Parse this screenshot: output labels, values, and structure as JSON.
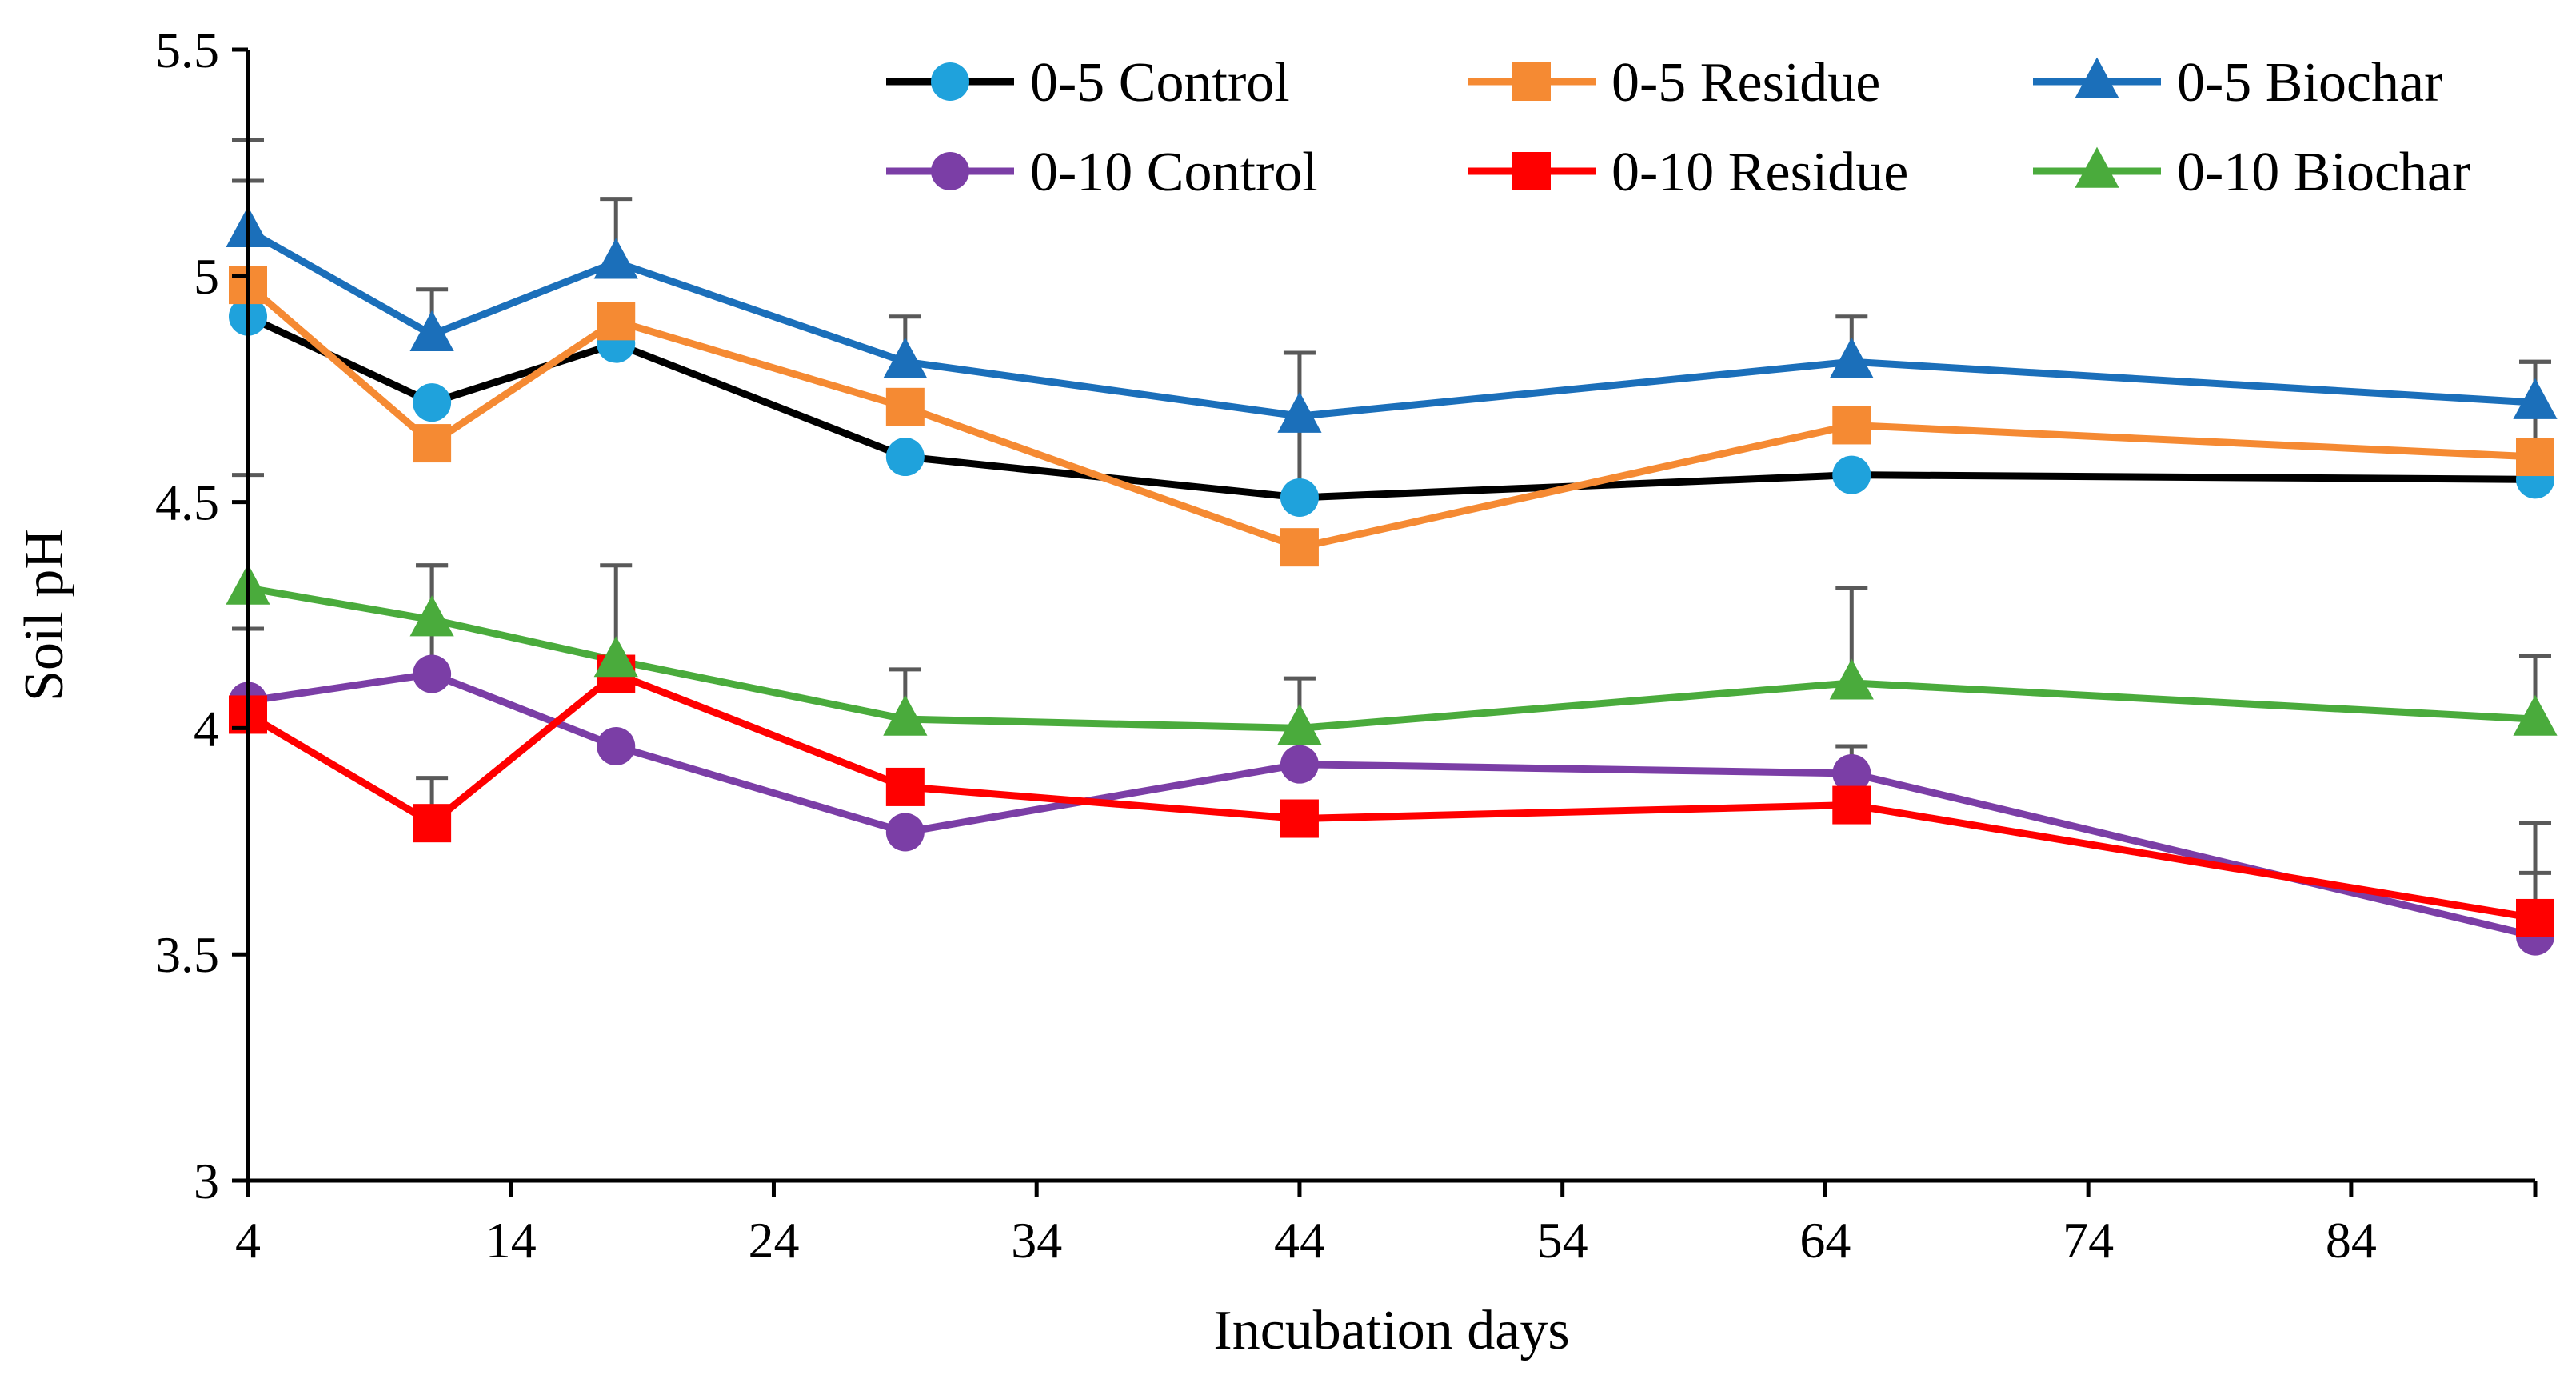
{
  "chart_data": {
    "type": "line",
    "title": "",
    "xlabel": "Incubation days",
    "ylabel": "Soil pH",
    "xlim": [
      4,
      91
    ],
    "ylim": [
      3,
      5.5
    ],
    "x_ticks": [
      4,
      14,
      24,
      34,
      44,
      54,
      64,
      74,
      84
    ],
    "x_tick_labels": [
      "4",
      "14",
      "24",
      "34",
      "44",
      "54",
      "64",
      "74",
      "84"
    ],
    "y_ticks": [
      3,
      3.5,
      4,
      4.5,
      5,
      5.5
    ],
    "y_tick_labels": [
      "3",
      "3.5",
      "4",
      "4.5",
      "5",
      "5.5"
    ],
    "grid": false,
    "legend_position": "top-right",
    "x": [
      4,
      11,
      18,
      29,
      44,
      65,
      91
    ],
    "series": [
      {
        "name": "0-5 Control",
        "line_color": "#000000",
        "marker_color": "#1fa2dc",
        "marker": "circle",
        "values": [
          4.91,
          4.72,
          4.85,
          4.6,
          4.51,
          4.56,
          4.55
        ],
        "errors": [
          0.0,
          0.0,
          0.0,
          0.0,
          0.15,
          0.0,
          0.0
        ]
      },
      {
        "name": "0-5 Residue",
        "line_color": "#f58a33",
        "marker_color": "#f58a33",
        "marker": "square",
        "values": [
          4.98,
          4.63,
          4.9,
          4.71,
          4.4,
          4.67,
          4.6
        ],
        "errors": [
          0.23,
          0.0,
          0.0,
          0.0,
          0.0,
          0.0,
          0.21
        ]
      },
      {
        "name": "0-5 Biochar",
        "line_color": "#1b6fba",
        "marker_color": "#1b6fba",
        "marker": "triangle",
        "values": [
          5.1,
          4.87,
          5.03,
          4.81,
          4.69,
          4.81,
          4.72
        ],
        "errors": [
          0.2,
          0.1,
          0.14,
          0.1,
          0.14,
          0.1,
          0.09
        ]
      },
      {
        "name": "0-10 Control",
        "line_color": "#7b3ea6",
        "marker_color": "#7b3ea6",
        "marker": "circle",
        "values": [
          4.06,
          4.12,
          3.96,
          3.77,
          3.92,
          3.9,
          3.54
        ],
        "errors": [
          0.16,
          0.24,
          0.0,
          0.0,
          0.0,
          0.06,
          0.14
        ]
      },
      {
        "name": "0-10 Residue",
        "line_color": "#ff0000",
        "marker_color": "#ff0000",
        "marker": "square",
        "values": [
          4.03,
          3.79,
          4.12,
          3.87,
          3.8,
          3.83,
          3.58
        ],
        "errors": [
          0.0,
          0.1,
          0.0,
          0.0,
          0.0,
          0.0,
          0.21
        ]
      },
      {
        "name": "0-10 Biochar",
        "line_color": "#4aab3c",
        "marker_color": "#4aab3c",
        "marker": "triangle",
        "values": [
          4.31,
          4.24,
          4.15,
          4.02,
          4.0,
          4.1,
          4.02
        ],
        "errors": [
          0.25,
          0.12,
          0.21,
          0.11,
          0.11,
          0.21,
          0.14
        ]
      }
    ],
    "legend_order": [
      0,
      1,
      2,
      3,
      4,
      5
    ]
  }
}
